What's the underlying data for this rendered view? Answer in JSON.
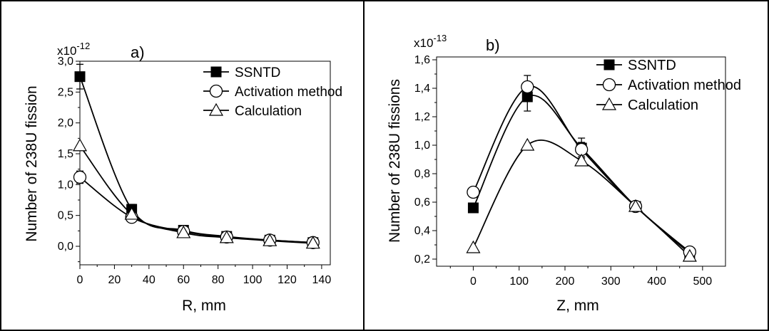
{
  "chart_data": [
    {
      "type": "line",
      "panel_label": "a)",
      "scale_label": "x10",
      "scale_exp": "-12",
      "ylabel": "Number of 238U fission",
      "xlabel": "R,  mm",
      "xlim": [
        0,
        145
      ],
      "ylim": [
        -0.3,
        3.0
      ],
      "xticks": [
        0,
        20,
        40,
        60,
        80,
        100,
        120,
        140
      ],
      "xtick_labels": [
        "0",
        "20",
        "40",
        "60",
        "80",
        "100",
        "120",
        "140"
      ],
      "yticks": [
        0.0,
        0.5,
        1.0,
        1.5,
        2.0,
        2.5,
        3.0
      ],
      "ytick_labels": [
        "0,0",
        "0,5",
        "1,0",
        "1,5",
        "2,0",
        "2,5",
        "3,0"
      ],
      "legend_position": "top-right",
      "series": [
        {
          "name": "SSNTD",
          "marker": "filled-square",
          "x": [
            0,
            30,
            60,
            85,
            110,
            135
          ],
          "y": [
            2.75,
            0.6,
            0.26,
            0.16,
            0.1,
            0.06
          ],
          "err": [
            0.2,
            0.08,
            0.05,
            0.04,
            0.04,
            0.03
          ]
        },
        {
          "name": "Activation method",
          "marker": "open-circle",
          "x": [
            0,
            30,
            60,
            85,
            110,
            135
          ],
          "y": [
            1.12,
            0.47,
            0.24,
            0.15,
            0.1,
            0.06
          ],
          "err": [
            0.1,
            0.06,
            0.05,
            0.04,
            0.03,
            0.03
          ]
        },
        {
          "name": "Calculation",
          "marker": "open-triangle",
          "x": [
            0,
            30,
            60,
            85,
            110,
            135
          ],
          "y": [
            1.63,
            0.52,
            0.22,
            0.14,
            0.09,
            0.05
          ],
          "err": [
            0,
            0,
            0,
            0,
            0,
            0
          ]
        }
      ]
    },
    {
      "type": "line",
      "panel_label": "b)",
      "scale_label": "x10",
      "scale_exp": "-13",
      "ylabel": "Number of 238U fissions",
      "xlabel": "Z, mm",
      "xlim": [
        -80,
        550
      ],
      "ylim": [
        0.15,
        1.62
      ],
      "xticks": [
        0,
        100,
        200,
        300,
        400,
        500
      ],
      "xtick_labels": [
        "0",
        "100",
        "200",
        "300",
        "400",
        "500"
      ],
      "yticks": [
        0.2,
        0.4,
        0.6,
        0.8,
        1.0,
        1.2,
        1.4,
        1.6
      ],
      "ytick_labels": [
        "0,2",
        "0,4",
        "0,6",
        "0,8",
        "1,0",
        "1,2",
        "1,4",
        "1,6"
      ],
      "legend_position": "top-right",
      "series": [
        {
          "name": "SSNTD",
          "marker": "filled-square",
          "x": [
            0,
            118,
            236,
            354,
            472
          ],
          "y": [
            0.56,
            1.34,
            0.98,
            0.57,
            0.24
          ],
          "err": [
            0.02,
            0.1,
            0.07,
            0.03,
            0.02
          ]
        },
        {
          "name": "Activation method",
          "marker": "open-circle",
          "x": [
            0,
            118,
            236,
            354,
            472
          ],
          "y": [
            0.67,
            1.41,
            0.97,
            0.57,
            0.25
          ],
          "err": [
            0.02,
            0.08,
            0.05,
            0.03,
            0.02
          ]
        },
        {
          "name": "Calculation",
          "marker": "open-triangle",
          "x": [
            0,
            118,
            236,
            354,
            472
          ],
          "y": [
            0.28,
            1.0,
            0.89,
            0.57,
            0.22
          ],
          "err": [
            0,
            0,
            0,
            0,
            0
          ]
        }
      ]
    }
  ]
}
